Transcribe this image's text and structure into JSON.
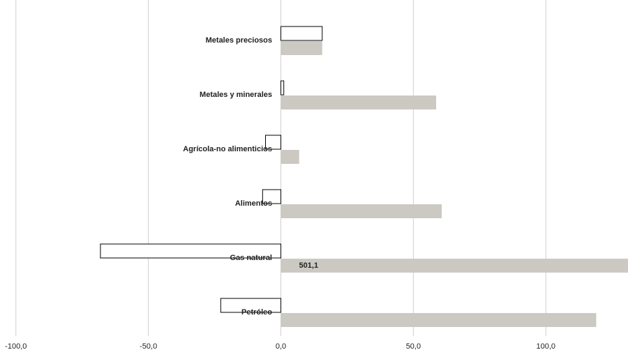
{
  "chart_data": {
    "type": "bar",
    "orientation": "horizontal",
    "categories": [
      "Metales preciosos",
      "Metales y minerales",
      "Agrícola-no alimenticios",
      "Alimentos",
      "Gas natural",
      "Petróleo"
    ],
    "series": [
      {
        "color": "#ffffff",
        "edgecolor": "#000000",
        "values": [
          15.6,
          1.1,
          -5.8,
          -6.9,
          -68.1,
          -22.7
        ]
      },
      {
        "color": "#ccc9c3",
        "values": [
          15.6,
          58.6,
          6.9,
          60.7,
          501.1,
          119.0
        ],
        "value_labels": [
          null,
          null,
          null,
          null,
          "501,1",
          null
        ]
      }
    ],
    "xlim": [
      -106,
      131
    ],
    "xticks": [
      {
        "value": -100,
        "label": "-100,0"
      },
      {
        "value": -50,
        "label": "-50,0"
      },
      {
        "value": 0,
        "label": "0,0"
      },
      {
        "value": 50,
        "label": "50,0"
      },
      {
        "value": 100,
        "label": "100,0"
      }
    ],
    "grid": true
  }
}
